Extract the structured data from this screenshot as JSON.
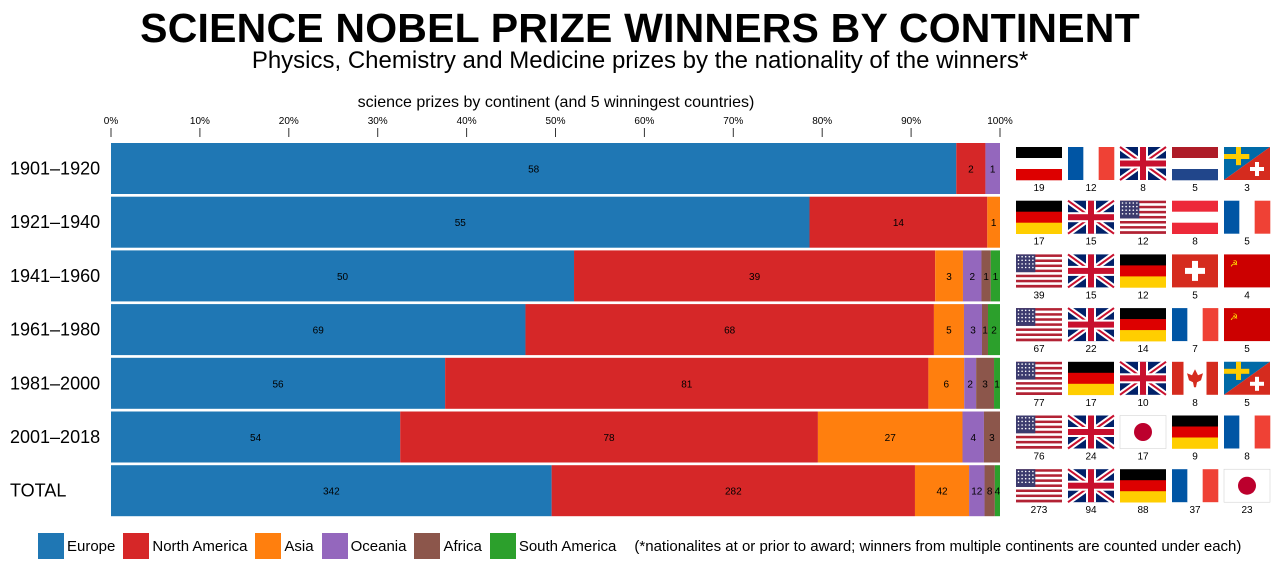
{
  "title": "SCIENCE NOBEL PRIZE WINNERS BY CONTINENT",
  "subtitle": "Physics, Chemistry and Medicine prizes by the nationality of the winners*",
  "footnote": "(*nationalites at or prior to award; winners from multiple continents are counted under each)",
  "colors": {
    "Europe": "#1f77b4",
    "North America": "#d62728",
    "Asia": "#ff7f0e",
    "Oceania": "#9467bd",
    "Africa": "#8c564b",
    "South America": "#2ca02c"
  },
  "chart_data": {
    "type": "bar",
    "orientation": "horizontal",
    "stacked": "100%",
    "title": "science prizes by continent (and 5 winningest countries)",
    "xlim": [
      0,
      100
    ],
    "xticks": [
      "0%",
      "10%",
      "20%",
      "30%",
      "40%",
      "50%",
      "60%",
      "70%",
      "80%",
      "90%",
      "100%"
    ],
    "categories": [
      "1901–1920",
      "1921–1940",
      "1941–1960",
      "1961–1980",
      "1981–2000",
      "2001–2018",
      "TOTAL"
    ],
    "series": [
      {
        "name": "Europe",
        "values": [
          58,
          55,
          50,
          69,
          56,
          54,
          342
        ]
      },
      {
        "name": "North America",
        "values": [
          2,
          14,
          39,
          68,
          81,
          78,
          282
        ]
      },
      {
        "name": "Asia",
        "values": [
          0,
          1,
          3,
          5,
          6,
          27,
          42
        ]
      },
      {
        "name": "Oceania",
        "values": [
          1,
          0,
          2,
          3,
          2,
          4,
          12
        ]
      },
      {
        "name": "Africa",
        "values": [
          0,
          0,
          1,
          1,
          3,
          3,
          8
        ]
      },
      {
        "name": "South America",
        "values": [
          0,
          0,
          1,
          2,
          1,
          0,
          4
        ]
      }
    ],
    "legend": "bottom",
    "top_countries": [
      [
        {
          "flag": "german-empire",
          "count": 19
        },
        {
          "flag": "france",
          "count": 12
        },
        {
          "flag": "united-kingdom",
          "count": 8
        },
        {
          "flag": "netherlands",
          "count": 5
        },
        {
          "flag": "sweden-switzerland",
          "count": 3
        }
      ],
      [
        {
          "flag": "germany",
          "count": 17
        },
        {
          "flag": "united-kingdom",
          "count": 15
        },
        {
          "flag": "united-states",
          "count": 12
        },
        {
          "flag": "austria",
          "count": 8
        },
        {
          "flag": "france",
          "count": 5
        }
      ],
      [
        {
          "flag": "united-states",
          "count": 39
        },
        {
          "flag": "united-kingdom",
          "count": 15
        },
        {
          "flag": "germany",
          "count": 12
        },
        {
          "flag": "switzerland",
          "count": 5
        },
        {
          "flag": "soviet-union",
          "count": 4
        }
      ],
      [
        {
          "flag": "united-states",
          "count": 67
        },
        {
          "flag": "united-kingdom",
          "count": 22
        },
        {
          "flag": "germany",
          "count": 14
        },
        {
          "flag": "france",
          "count": 7
        },
        {
          "flag": "soviet-union",
          "count": 5
        }
      ],
      [
        {
          "flag": "united-states",
          "count": 77
        },
        {
          "flag": "germany",
          "count": 17
        },
        {
          "flag": "united-kingdom",
          "count": 10
        },
        {
          "flag": "canada",
          "count": 8
        },
        {
          "flag": "sweden-switzerland",
          "count": 5
        }
      ],
      [
        {
          "flag": "united-states",
          "count": 76
        },
        {
          "flag": "united-kingdom",
          "count": 24
        },
        {
          "flag": "japan",
          "count": 17
        },
        {
          "flag": "germany",
          "count": 9
        },
        {
          "flag": "france",
          "count": 8
        }
      ],
      [
        {
          "flag": "united-states",
          "count": 273
        },
        {
          "flag": "united-kingdom",
          "count": 94
        },
        {
          "flag": "germany",
          "count": 88
        },
        {
          "flag": "france",
          "count": 37
        },
        {
          "flag": "japan",
          "count": 23
        }
      ]
    ]
  }
}
